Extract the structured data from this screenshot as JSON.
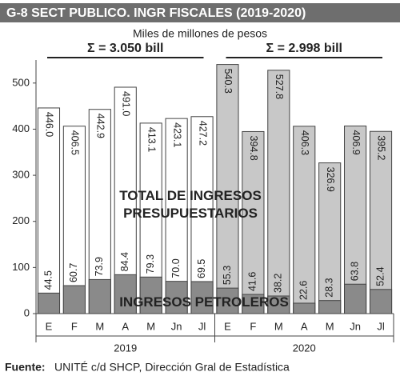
{
  "chart_data": {
    "type": "overlap_bar",
    "title": "G-8   SECT PUBLICO. INGR FISCALES (2019-2020)",
    "subtitle": "Miles de millones de pesos",
    "groups": [
      {
        "name": "2019",
        "sum_label": "Σ = 3.050 bill",
        "color": "#ffffff",
        "categories": [
          "E",
          "F",
          "M",
          "A",
          "M",
          "Jn",
          "Jl"
        ]
      },
      {
        "name": "2020",
        "sum_label": "Σ = 2.998 bill",
        "color": "#c8c8c8",
        "categories": [
          "E",
          "F",
          "M",
          "A",
          "M",
          "Jn",
          "Jl"
        ]
      }
    ],
    "series": [
      {
        "name": "TOTAL DE INGRESOS PRESUPUESTARIOS",
        "values": [
          446.0,
          406.5,
          442.9,
          491.0,
          413.1,
          423.1,
          427.2,
          540.3,
          394.8,
          527.8,
          406.3,
          326.9,
          406.9,
          395.2
        ],
        "value_labels": [
          "446.0",
          "406.5",
          "442.9",
          "491.0",
          "413.1",
          "423.1",
          "427.2",
          "540.3",
          "394.8",
          "527.8",
          "406.3",
          "326.9",
          "406.9",
          "395.2"
        ]
      },
      {
        "name": "INGRESOS PETROLEROS",
        "color": "#8a8a8a",
        "values": [
          44.5,
          60.7,
          73.9,
          84.4,
          79.3,
          70.0,
          69.5,
          55.3,
          41.6,
          38.2,
          22.6,
          28.3,
          63.8,
          52.4
        ],
        "value_labels": [
          "44.5",
          "60.7",
          "73.9",
          "84.4",
          "79.3",
          "70.0",
          "69.5",
          "55.3",
          "41.6",
          "38.2",
          "22.6",
          "28.3",
          "63.8",
          "52.4"
        ]
      }
    ],
    "ylim": [
      0,
      550
    ],
    "yticks": [
      0,
      100,
      200,
      300,
      400,
      500
    ],
    "source": {
      "label": "Fuente:",
      "text": "UNITÉ c/d SHCP, Dirección Gral de Estadística"
    }
  }
}
